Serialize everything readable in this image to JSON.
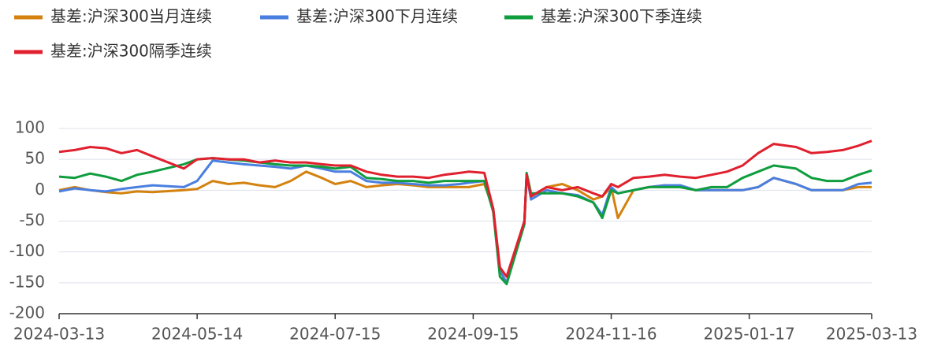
{
  "chart_data": {
    "type": "line",
    "x": [
      "2024-03-13",
      "2024-03-20",
      "2024-03-27",
      "2024-04-03",
      "2024-04-10",
      "2024-04-17",
      "2024-04-24",
      "2024-05-08",
      "2024-05-14",
      "2024-05-21",
      "2024-05-28",
      "2024-06-04",
      "2024-06-11",
      "2024-06-18",
      "2024-06-25",
      "2024-07-02",
      "2024-07-09",
      "2024-07-15",
      "2024-07-22",
      "2024-07-29",
      "2024-08-05",
      "2024-08-12",
      "2024-08-19",
      "2024-08-26",
      "2024-09-02",
      "2024-09-09",
      "2024-09-13",
      "2024-09-20",
      "2024-09-24",
      "2024-09-27",
      "2024-09-30",
      "2024-10-08",
      "2024-10-09",
      "2024-10-11",
      "2024-10-18",
      "2024-10-25",
      "2024-11-01",
      "2024-11-08",
      "2024-11-12",
      "2024-11-16",
      "2024-11-19",
      "2024-11-26",
      "2024-12-03",
      "2024-12-10",
      "2024-12-17",
      "2024-12-24",
      "2024-12-31",
      "2025-01-07",
      "2025-01-14",
      "2025-01-21",
      "2025-01-28",
      "2025-02-07",
      "2025-02-14",
      "2025-02-21",
      "2025-02-28",
      "2025-03-07",
      "2025-03-13"
    ],
    "series": [
      {
        "name": "基差:沪深300当月连续",
        "color": "#d4820f",
        "values": [
          0,
          5,
          0,
          -3,
          -5,
          -2,
          -3,
          0,
          2,
          15,
          10,
          12,
          8,
          5,
          15,
          30,
          20,
          10,
          15,
          5,
          8,
          10,
          8,
          5,
          5,
          5,
          5,
          10,
          -30,
          -130,
          -150,
          -50,
          25,
          -10,
          5,
          10,
          0,
          -15,
          -10,
          5,
          -45,
          0,
          5,
          8,
          5,
          0,
          0,
          0,
          0,
          5,
          20,
          10,
          0,
          0,
          0,
          5,
          5
        ]
      },
      {
        "name": "基差:沪深300下月连续",
        "color": "#4a7fe0",
        "values": [
          -2,
          3,
          0,
          -2,
          2,
          5,
          8,
          5,
          15,
          48,
          45,
          42,
          40,
          38,
          35,
          40,
          35,
          30,
          30,
          15,
          12,
          12,
          10,
          8,
          8,
          10,
          12,
          15,
          -30,
          -130,
          -150,
          -50,
          25,
          -15,
          0,
          -5,
          -8,
          -20,
          -40,
          5,
          -5,
          0,
          5,
          8,
          8,
          0,
          0,
          0,
          0,
          5,
          20,
          10,
          0,
          0,
          0,
          10,
          12
        ]
      },
      {
        "name": "基差:沪深300下季连续",
        "color": "#0f9d3e",
        "values": [
          22,
          20,
          27,
          22,
          15,
          25,
          30,
          42,
          50,
          52,
          50,
          48,
          45,
          42,
          40,
          40,
          38,
          35,
          38,
          20,
          18,
          15,
          15,
          12,
          15,
          15,
          15,
          15,
          -35,
          -140,
          -152,
          -55,
          28,
          -5,
          -5,
          -5,
          -10,
          -20,
          -45,
          0,
          -5,
          0,
          5,
          5,
          5,
          0,
          5,
          5,
          20,
          30,
          40,
          35,
          20,
          15,
          15,
          25,
          32
        ]
      },
      {
        "name": "基差:沪深300隔季连续",
        "color": "#e0202e",
        "values": [
          62,
          65,
          70,
          68,
          60,
          65,
          55,
          35,
          50,
          52,
          50,
          50,
          45,
          48,
          45,
          45,
          42,
          40,
          40,
          30,
          25,
          22,
          22,
          20,
          25,
          28,
          30,
          28,
          -30,
          -125,
          -140,
          -50,
          25,
          -10,
          5,
          0,
          5,
          -5,
          -10,
          10,
          5,
          20,
          22,
          25,
          22,
          20,
          25,
          30,
          40,
          60,
          75,
          70,
          60,
          62,
          65,
          72,
          80
        ]
      }
    ],
    "xlim": [
      "2024-03-13",
      "2025-03-13"
    ],
    "xticks": [
      "2024-03-13",
      "2024-05-14",
      "2024-07-15",
      "2024-09-15",
      "2024-11-16",
      "2025-01-17",
      "2025-03-13"
    ],
    "ylim": [
      -200,
      100
    ],
    "yticks": [
      100,
      50,
      0,
      -50,
      -100,
      -150,
      -200
    ],
    "grid": true
  }
}
